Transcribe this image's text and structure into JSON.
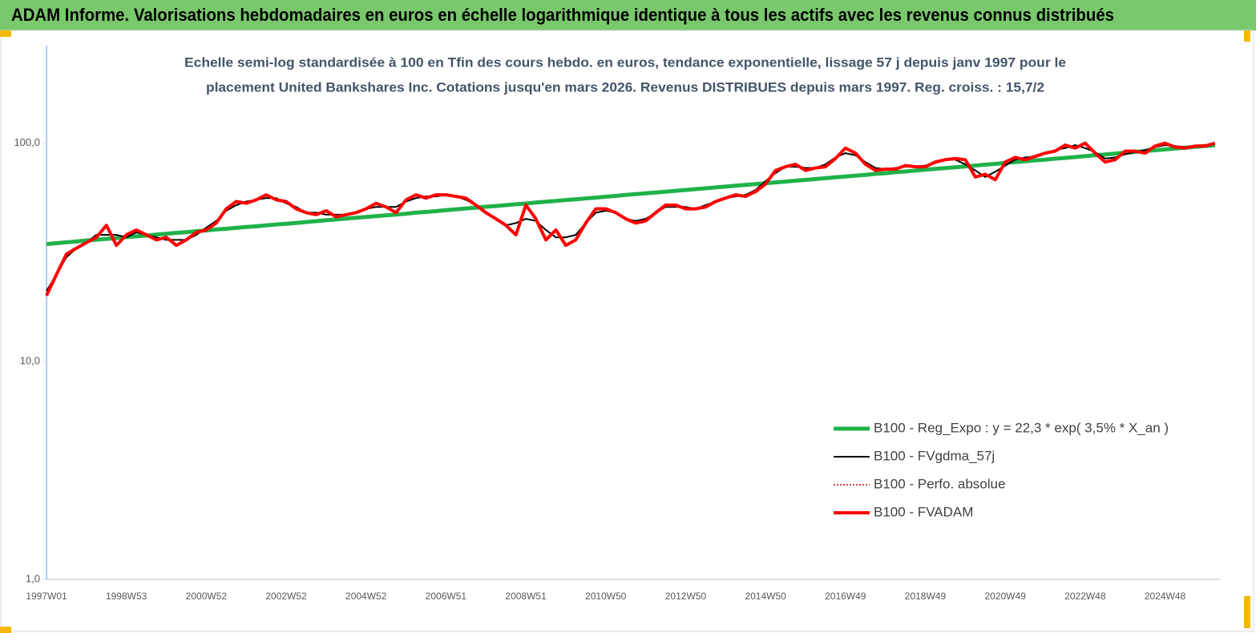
{
  "chart_data": {
    "type": "line",
    "title": "ADAM Informe. Valorisations hebdomadaires en euros en échelle logarithmique identique à tous les actifs avec les revenus connus distribués",
    "subtitle": [
      "Echelle semi-log standardisée à 100 en Tfin des cours hebdo. en euros, tendance exponentielle, lissage 57 j depuis janv 1997 pour le",
      "placement United Bankshares Inc. Cotations jusqu'en mars 2026. Revenus DISTRIBUES depuis mars 1997. Reg. croiss. : 15,7/2"
    ],
    "log_scale": true,
    "grid": false,
    "legend": "lower right",
    "ylim": [
      1,
      280
    ],
    "yticks": [
      {
        "value": 1,
        "label": "1,0"
      },
      {
        "value": 10,
        "label": "10,0"
      },
      {
        "value": 100,
        "label": "100,0"
      }
    ],
    "categories": [
      "1997W01",
      null,
      null,
      null,
      null,
      null,
      null,
      null,
      "1998W53",
      null,
      null,
      null,
      null,
      null,
      null,
      null,
      "2000W52",
      null,
      null,
      null,
      null,
      null,
      null,
      null,
      "2002W52",
      null,
      null,
      null,
      null,
      null,
      null,
      null,
      "2004W52",
      null,
      null,
      null,
      null,
      null,
      null,
      null,
      "2006W51",
      null,
      null,
      null,
      null,
      null,
      null,
      null,
      "2008W51",
      null,
      null,
      null,
      null,
      null,
      null,
      null,
      "2010W50",
      null,
      null,
      null,
      null,
      null,
      null,
      null,
      "2012W50",
      null,
      null,
      null,
      null,
      null,
      null,
      null,
      "2014W50",
      null,
      null,
      null,
      null,
      null,
      null,
      null,
      "2016W49",
      null,
      null,
      null,
      null,
      null,
      null,
      null,
      "2018W49",
      null,
      null,
      null,
      null,
      null,
      null,
      null,
      "2020W49",
      null,
      null,
      null,
      null,
      null,
      null,
      null,
      "2022W48",
      null,
      null,
      null,
      null,
      null,
      null,
      null,
      "2024W48",
      null,
      null,
      null,
      null,
      null
    ],
    "series": [
      {
        "name": "B100 - Reg_Expo : y = 22,3 * exp( 3,5% * X_an )",
        "color": "#1fb24a",
        "style": "solid",
        "width": 5,
        "values": [
          34.5,
          34.8,
          35.1,
          35.4,
          35.8,
          36.1,
          36.4,
          36.7,
          37.1,
          37.4,
          37.7,
          38.1,
          38.4,
          38.8,
          39.1,
          39.5,
          39.8,
          40.2,
          40.5,
          40.9,
          41.3,
          41.6,
          42.0,
          42.4,
          42.7,
          43.1,
          43.5,
          43.9,
          44.3,
          44.7,
          45.1,
          45.5,
          45.9,
          46.3,
          46.7,
          47.1,
          47.5,
          48.0,
          48.4,
          48.8,
          49.3,
          49.7,
          50.2,
          50.6,
          51.1,
          51.5,
          52.0,
          52.5,
          52.9,
          53.4,
          53.9,
          54.4,
          54.9,
          55.3,
          55.8,
          56.3,
          56.8,
          57.3,
          57.9,
          58.4,
          58.9,
          59.4,
          59.9,
          60.5,
          61.0,
          61.6,
          62.1,
          62.7,
          63.2,
          63.8,
          64.4,
          64.9,
          65.5,
          66.1,
          66.7,
          67.3,
          67.9,
          68.5,
          69.1,
          69.8,
          70.4,
          71.0,
          71.6,
          72.3,
          72.9,
          73.6,
          74.2,
          74.9,
          75.6,
          76.3,
          76.9,
          77.6,
          78.3,
          79.0,
          79.7,
          80.4,
          81.2,
          81.9,
          82.6,
          83.4,
          84.1,
          84.9,
          85.6,
          86.4,
          87.2,
          88.0,
          88.8,
          89.6,
          90.4,
          91.2,
          92.0,
          92.8,
          93.6,
          94.5,
          95.3,
          96.2,
          97.1,
          97.9
        ]
      },
      {
        "name": "B100 - FVgdma_57j",
        "color": "#000000",
        "style": "solid",
        "width": 2,
        "values": [
          21,
          25,
          30,
          33,
          35,
          38,
          38,
          38,
          37,
          39,
          38,
          37,
          36,
          36,
          36,
          38,
          41,
          44,
          49,
          52,
          54,
          55,
          56,
          56,
          53,
          51,
          48,
          48,
          47,
          47,
          47,
          48,
          50,
          51,
          51,
          51,
          54,
          56,
          57,
          57,
          58,
          57,
          55,
          52,
          48,
          45,
          42,
          43,
          45,
          44,
          40,
          37,
          37,
          38,
          43,
          48,
          49,
          48,
          45,
          44,
          45,
          48,
          51,
          51,
          51,
          50,
          52,
          54,
          56,
          57,
          58,
          61,
          67,
          73,
          78,
          78,
          77,
          77,
          80,
          86,
          90,
          88,
          82,
          77,
          76,
          77,
          78,
          78,
          79,
          81,
          84,
          84,
          80,
          75,
          70,
          74,
          79,
          84,
          86,
          87,
          90,
          93,
          95,
          98,
          95,
          91,
          85,
          86,
          89,
          91,
          93,
          96,
          98,
          97,
          96,
          96,
          98,
          99
        ]
      },
      {
        "name": "B100 - Perfo. absolue",
        "color": "#e00000",
        "style": "dotted",
        "width": 1.5,
        "values": [
          20,
          25,
          31,
          33,
          35,
          37,
          42,
          34,
          38,
          40,
          38,
          36,
          37,
          34,
          36,
          39,
          40,
          43,
          50,
          54,
          53,
          55,
          58,
          55,
          54,
          50,
          48,
          47,
          49,
          46,
          47,
          48,
          50,
          53,
          51,
          48,
          55,
          58,
          56,
          58,
          58,
          57,
          56,
          52,
          48,
          45,
          42,
          38,
          52,
          45,
          36,
          40,
          34,
          36,
          43,
          50,
          50,
          48,
          45,
          43,
          44,
          48,
          52,
          52,
          50,
          50,
          51,
          54,
          56,
          58,
          57,
          60,
          65,
          75,
          78,
          80,
          75,
          77,
          78,
          85,
          95,
          90,
          80,
          75,
          76,
          76,
          79,
          78,
          78,
          82,
          84,
          85,
          84,
          70,
          72,
          68,
          82,
          86,
          84,
          87,
          90,
          92,
          98,
          95,
          100,
          90,
          82,
          84,
          92,
          92,
          90,
          97,
          100,
          96,
          95,
          97,
          97,
          100
        ]
      },
      {
        "name": "B100 - FVADAM",
        "color": "#ff0000",
        "style": "solid",
        "width": 4,
        "values": [
          20,
          25,
          31,
          33,
          35,
          37,
          42,
          34,
          38,
          40,
          38,
          36,
          37,
          34,
          36,
          39,
          40,
          43,
          50,
          54,
          53,
          55,
          58,
          55,
          54,
          50,
          48,
          47,
          49,
          46,
          47,
          48,
          50,
          53,
          51,
          48,
          55,
          58,
          56,
          58,
          58,
          57,
          56,
          52,
          48,
          45,
          42,
          38,
          52,
          45,
          36,
          40,
          34,
          36,
          43,
          50,
          50,
          48,
          45,
          43,
          44,
          48,
          52,
          52,
          50,
          50,
          51,
          54,
          56,
          58,
          57,
          60,
          65,
          75,
          78,
          80,
          75,
          77,
          78,
          85,
          95,
          90,
          80,
          75,
          76,
          76,
          79,
          78,
          78,
          82,
          84,
          85,
          84,
          70,
          72,
          68,
          82,
          86,
          84,
          87,
          90,
          92,
          98,
          95,
          100,
          90,
          82,
          84,
          92,
          92,
          90,
          97,
          100,
          96,
          95,
          97,
          97,
          100
        ]
      }
    ]
  }
}
